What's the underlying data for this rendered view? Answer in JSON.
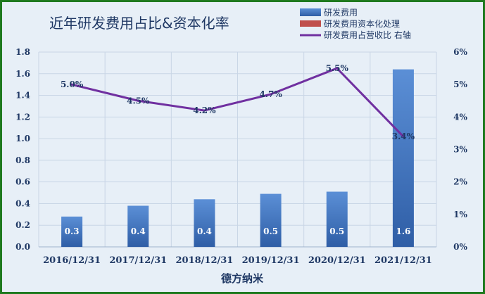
{
  "chart_data": {
    "type": "bar",
    "title": "近年研发费用占比&资本化率",
    "xlabel": "德方纳米",
    "categories": [
      "2016/12/31",
      "2017/12/31",
      "2018/12/31",
      "2019/12/31",
      "2020/12/31",
      "2021/12/31"
    ],
    "y_left": {
      "min": 0,
      "max": 1.8,
      "step": 0.2,
      "ticks": [
        "0.0",
        "0.2",
        "0.4",
        "0.6",
        "0.8",
        "1.0",
        "1.2",
        "1.4",
        "1.6",
        "1.8"
      ]
    },
    "y_right": {
      "min": 0,
      "max": 6,
      "step": 1,
      "ticks": [
        "0%",
        "1%",
        "2%",
        "3%",
        "4%",
        "5%",
        "6%"
      ]
    },
    "grid": true,
    "legend_position": "top-right",
    "series": [
      {
        "name": "研发费用",
        "type": "bar",
        "axis": "left",
        "color": "#4a7fc9",
        "values": [
          0.28,
          0.38,
          0.44,
          0.49,
          0.51,
          1.64
        ],
        "labels": [
          "0.3",
          "0.4",
          "0.4",
          "0.5",
          "0.5",
          "1.6"
        ]
      },
      {
        "name": "研发费用资本化处理",
        "type": "bar",
        "axis": "left",
        "color": "#c0504d",
        "values": [
          0,
          0,
          0,
          0,
          0,
          0
        ],
        "labels": []
      },
      {
        "name": "研发费用占营收比 右轴",
        "type": "line",
        "axis": "right",
        "color": "#7030a0",
        "values": [
          5.0,
          4.5,
          4.2,
          4.7,
          5.5,
          3.4
        ],
        "labels": [
          "5.0%",
          "4.5%",
          "4.2%",
          "4.7%",
          "5.5%",
          "3.4%"
        ]
      }
    ]
  }
}
